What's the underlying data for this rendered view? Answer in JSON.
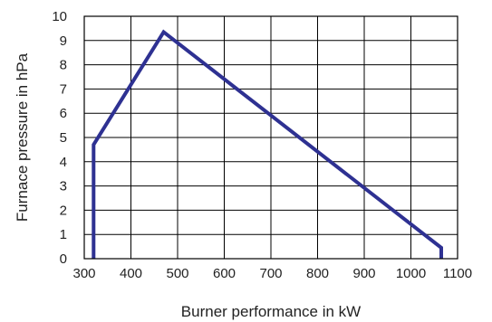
{
  "chart_data": {
    "type": "line",
    "title": "",
    "xlabel": "Burner performance in kW",
    "ylabel": "Furnace pressure in hPa",
    "xlim": [
      300,
      1100
    ],
    "ylim": [
      0,
      10
    ],
    "xticks": [
      300,
      400,
      500,
      600,
      700,
      800,
      900,
      1000,
      1100
    ],
    "yticks": [
      0,
      1,
      2,
      3,
      4,
      5,
      6,
      7,
      8,
      9,
      10
    ],
    "grid": true,
    "legend": "none",
    "series": [
      {
        "color": "#2e3192",
        "x": [
          320,
          320,
          470,
          1065,
          1065
        ],
        "y": [
          0,
          4.7,
          9.35,
          0.45,
          0
        ]
      }
    ]
  }
}
